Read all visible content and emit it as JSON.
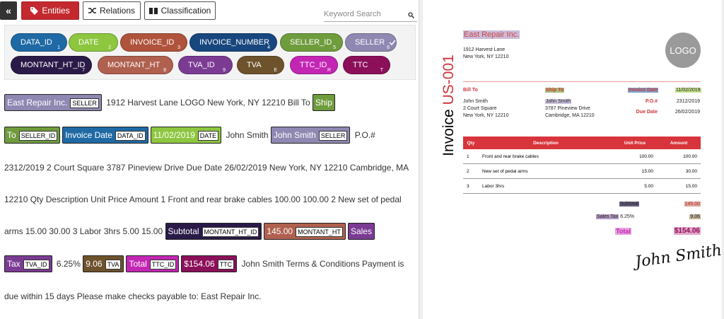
{
  "toolbar": {
    "collapse": "«",
    "tabs": [
      "Entities",
      "Relations",
      "Classification"
    ],
    "search_placeholder": "Keyword Search"
  },
  "labels": [
    {
      "name": "DATA_ID",
      "key": "1",
      "color": "#1f6aa5"
    },
    {
      "name": "DATE",
      "key": "2",
      "color": "#8dc63f"
    },
    {
      "name": "INVOICE_ID",
      "key": "3",
      "color": "#b0533c"
    },
    {
      "name": "INVOICE_NUMBER",
      "key": "4",
      "color": "#17477e"
    },
    {
      "name": "SELLER_ID",
      "key": "5",
      "color": "#6f9c3d"
    },
    {
      "name": "SELLER",
      "key": "6",
      "color": "#8f88b2",
      "checked": true
    },
    {
      "name": "MONTANT_HT_ID",
      "key": "7",
      "color": "#2a1a48"
    },
    {
      "name": "MONTANT_HT",
      "key": "8",
      "color": "#b0604f"
    },
    {
      "name": "TVA_ID",
      "key": "9",
      "color": "#7b3b93"
    },
    {
      "name": "TVA",
      "key": "E",
      "color": "#6e522c"
    },
    {
      "name": "TTC_ID",
      "key": "R",
      "color": "#c326b3"
    },
    {
      "name": "TTC",
      "key": "T",
      "color": "#8c0f5a"
    }
  ],
  "document_text": [
    {
      "text": "East Repair Inc.",
      "tag": "SELLER"
    },
    {
      "text": " 1912 Harvest Lane LOGO New York, NY 12210 Bill To "
    },
    {
      "text": "Ship To",
      "tag": "SELLER_ID"
    },
    {
      "text": "Invoice Date",
      "tag": "DATA_ID"
    },
    {
      "text": "11/02/2019",
      "tag": "DATE"
    },
    {
      "text": " John Smith "
    },
    {
      "text": "John Smith",
      "tag": "SELLER"
    },
    {
      "text": " P.O.# 2312/2019 2 Court Square 3787 Pineview Drive Due Date 26/02/2019 New York, NY 12210 Cambridge, MA 12210 Qty Description Unit Price Amount 1 Front and rear brake cables 100.00 100.00 2 New set of pedal arms 15.00 30.00 3 Labor 3hrs 5.00 15.00 "
    },
    {
      "text": "Subtotal",
      "tag": "MONTANT_HT_ID"
    },
    {
      "text": "145.00",
      "tag": "MONTANT_HT"
    },
    {
      "text": "Sales Tax",
      "tag": "TVA_ID"
    },
    {
      "text": " 6.25% "
    },
    {
      "text": "9.06",
      "tag": "TVA"
    },
    {
      "text": "Total",
      "tag": "TTC_ID"
    },
    {
      "text": "$154.06",
      "tag": "TTC"
    },
    {
      "text": " John Smith Terms & Conditions Payment is due within 15 days Please make checks payable to: East Repair Inc."
    }
  ],
  "invoice": {
    "company": "East Repair Inc.",
    "address": [
      "1912 Harvest Lane",
      "New York, NY 12210"
    ],
    "logo": "LOGO",
    "title": "Invoice",
    "number": "US-001",
    "bill_to": {
      "label": "Bill To",
      "lines": [
        "John Smith",
        "2 Court Square",
        "New York, NY 12210"
      ]
    },
    "ship_to": {
      "label": "Ship To",
      "lines": [
        "John Smith",
        "3787 Pineview Drive",
        "Cambridge, MA 12210"
      ]
    },
    "meta": [
      {
        "label": "Invoice Date",
        "value": "11/02/2019"
      },
      {
        "label": "P.O.#",
        "value": "2312/2019"
      },
      {
        "label": "Due Date",
        "value": "26/02/2019"
      }
    ],
    "table": {
      "headers": [
        "Qty",
        "Description",
        "Unit Price",
        "Amount"
      ],
      "rows": [
        [
          "1",
          "Front and rear brake cables",
          "100.00",
          "100.00"
        ],
        [
          "2",
          "New set of pedal arms",
          "15.00",
          "30.00"
        ],
        [
          "3",
          "Labor 3hrs",
          "5.00",
          "15.00"
        ]
      ]
    },
    "subtotal": {
      "label": "Subtotal",
      "value": "145.00"
    },
    "tax": {
      "label": "Sales Tax",
      "rate": "6.25%",
      "value": "9.06"
    },
    "total": {
      "label": "Total",
      "value": "$154.06"
    },
    "signature": "John Smith"
  }
}
